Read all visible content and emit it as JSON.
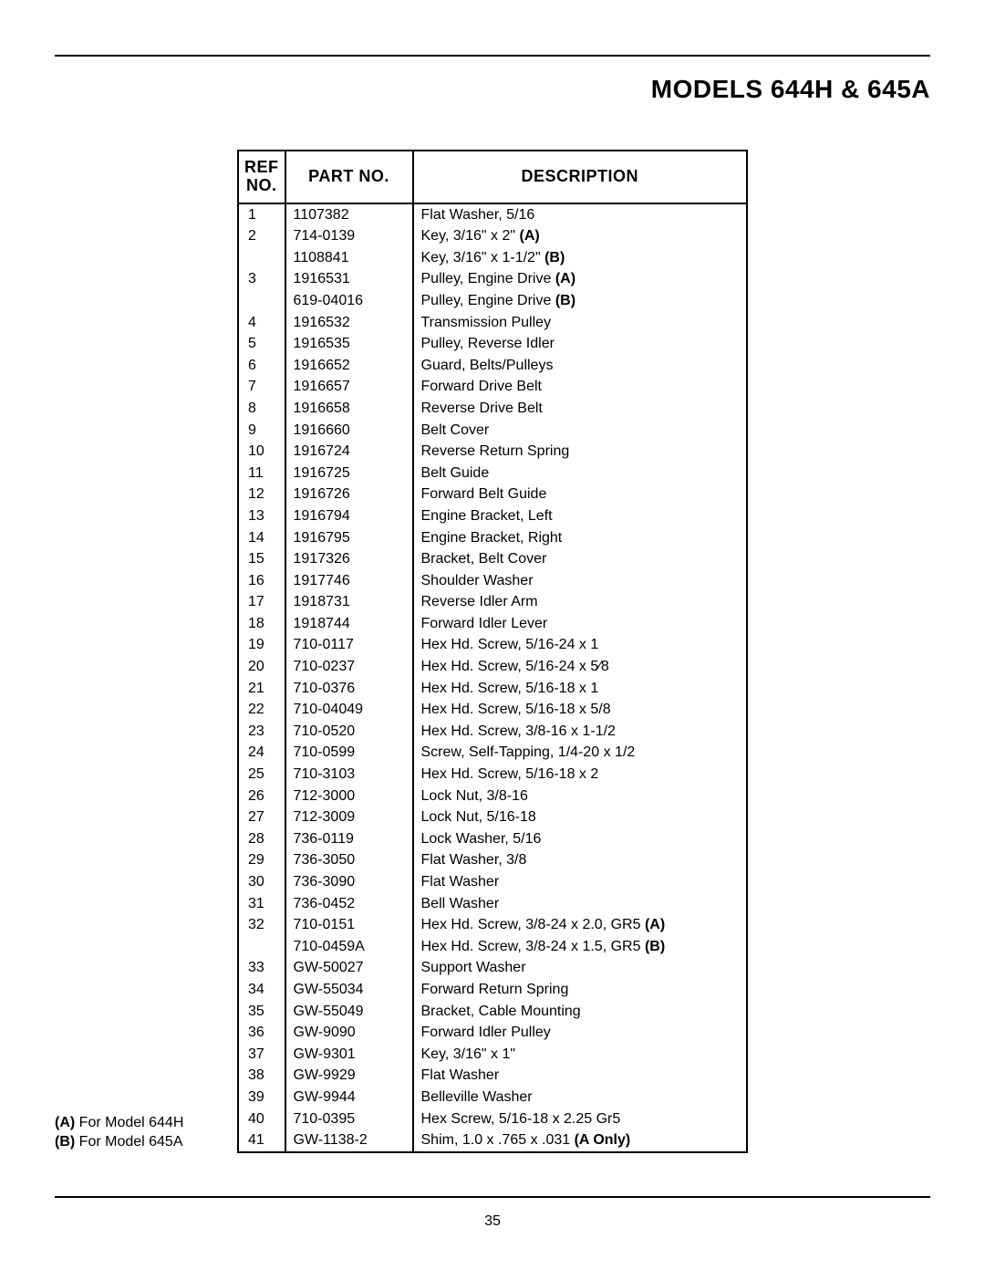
{
  "header": {
    "title": "MODELS 644H & 645A"
  },
  "table": {
    "columns": {
      "ref": "REF\nNO.",
      "part": "PART NO.",
      "desc": "DESCRIPTION"
    },
    "rows": [
      {
        "ref": "1",
        "part": "1107382",
        "desc": "Flat Washer, 5/16"
      },
      {
        "ref": "2",
        "part": "714-0139",
        "desc": "Key, 3/16\" x 2\" <b>(A)</b>"
      },
      {
        "ref": "",
        "part": "1108841",
        "desc": "Key, 3/16\" x 1-1/2\" <b>(B)</b>"
      },
      {
        "ref": "3",
        "part": "1916531",
        "desc": "Pulley, Engine Drive <b>(A)</b>"
      },
      {
        "ref": "",
        "part": "619-04016",
        "desc": "Pulley, Engine Drive <b>(B)</b>"
      },
      {
        "ref": "4",
        "part": "1916532",
        "desc": "Transmission Pulley"
      },
      {
        "ref": "5",
        "part": "1916535",
        "desc": "Pulley, Reverse Idler"
      },
      {
        "ref": "6",
        "part": "1916652",
        "desc": "Guard, Belts/Pulleys"
      },
      {
        "ref": "7",
        "part": "1916657",
        "desc": "Forward Drive Belt"
      },
      {
        "ref": "8",
        "part": "1916658",
        "desc": "Reverse Drive Belt"
      },
      {
        "ref": "9",
        "part": "1916660",
        "desc": "Belt Cover"
      },
      {
        "ref": "10",
        "part": "1916724",
        "desc": "Reverse Return Spring"
      },
      {
        "ref": "11",
        "part": "1916725",
        "desc": "Belt Guide"
      },
      {
        "ref": "12",
        "part": "1916726",
        "desc": "Forward Belt Guide"
      },
      {
        "ref": "13",
        "part": "1916794",
        "desc": "Engine Bracket, Left"
      },
      {
        "ref": "14",
        "part": "1916795",
        "desc": "Engine Bracket, Right"
      },
      {
        "ref": "15",
        "part": "1917326",
        "desc": "Bracket, Belt Cover"
      },
      {
        "ref": "16",
        "part": "1917746",
        "desc": "Shoulder Washer"
      },
      {
        "ref": "17",
        "part": "1918731",
        "desc": "Reverse Idler Arm"
      },
      {
        "ref": "18",
        "part": "1918744",
        "desc": "Forward Idler Lever"
      },
      {
        "ref": "19",
        "part": "710-0117",
        "desc": "Hex Hd. Screw, 5/16-24 x 1"
      },
      {
        "ref": "20",
        "part": "710-0237",
        "desc": "Hex Hd. Screw, 5/16-24 x 5⁄8"
      },
      {
        "ref": "21",
        "part": "710-0376",
        "desc": "Hex Hd. Screw, 5/16-18 x 1"
      },
      {
        "ref": "22",
        "part": "710-04049",
        "desc": "Hex Hd. Screw, 5/16-18 x 5/8"
      },
      {
        "ref": "23",
        "part": "710-0520",
        "desc": "Hex Hd. Screw, 3/8-16 x 1-1/2"
      },
      {
        "ref": "24",
        "part": "710-0599",
        "desc": "Screw, Self-Tapping, 1/4-20 x 1/2"
      },
      {
        "ref": "25",
        "part": "710-3103",
        "desc": "Hex Hd. Screw, 5/16-18 x 2"
      },
      {
        "ref": "26",
        "part": "712-3000",
        "desc": "Lock Nut, 3/8-16"
      },
      {
        "ref": "27",
        "part": "712-3009",
        "desc": "Lock Nut, 5/16-18"
      },
      {
        "ref": "28",
        "part": "736-0119",
        "desc": "Lock Washer, 5/16"
      },
      {
        "ref": "29",
        "part": "736-3050",
        "desc": "Flat Washer, 3/8"
      },
      {
        "ref": "30",
        "part": "736-3090",
        "desc": "Flat Washer"
      },
      {
        "ref": "31",
        "part": "736-0452",
        "desc": "Bell Washer"
      },
      {
        "ref": "32",
        "part": "710-0151",
        "desc": "Hex Hd. Screw, 3/8-24  x 2.0, GR5 <b>(A)</b>"
      },
      {
        "ref": "",
        "part": "710-0459A",
        "desc": "Hex Hd. Screw, 3/8-24  x 1.5, GR5 <b>(B)</b>"
      },
      {
        "ref": "33",
        "part": "GW-50027",
        "desc": "Support Washer"
      },
      {
        "ref": "34",
        "part": "GW-55034",
        "desc": "Forward Return Spring"
      },
      {
        "ref": "35",
        "part": "GW-55049",
        "desc": "Bracket, Cable Mounting"
      },
      {
        "ref": "36",
        "part": "GW-9090",
        "desc": "Forward Idler Pulley"
      },
      {
        "ref": "37",
        "part": "GW-9301",
        "desc": "Key, 3/16\" x 1\""
      },
      {
        "ref": "38",
        "part": "GW-9929",
        "desc": "Flat Washer"
      },
      {
        "ref": "39",
        "part": "GW-9944",
        "desc": "Belleville Washer"
      },
      {
        "ref": "40",
        "part": "710-0395",
        "desc": "Hex Screw, 5/16-18 x 2.25 Gr5"
      },
      {
        "ref": "41",
        "part": "GW-1138-2",
        "desc": "Shim, 1.0 x .765 x .031 <b>(A Only)</b>"
      }
    ]
  },
  "footnotes": {
    "a": "<b>(A)</b> For Model 644H",
    "b": "<b>(B)</b> For Model 645A"
  },
  "page_number": "35"
}
